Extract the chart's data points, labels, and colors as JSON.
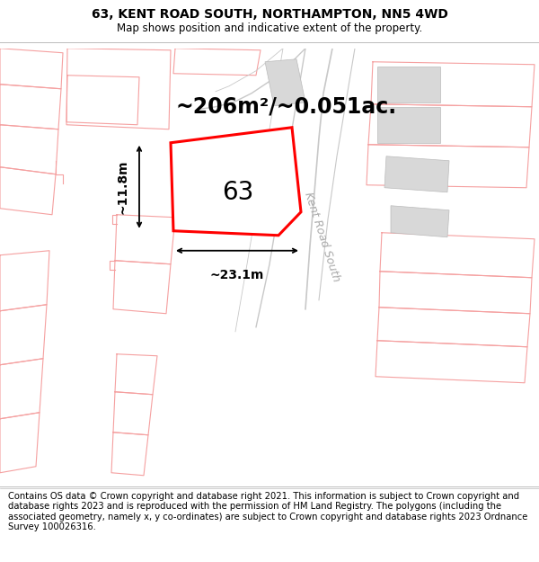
{
  "title": "63, KENT ROAD SOUTH, NORTHAMPTON, NN5 4WD",
  "subtitle": "Map shows position and indicative extent of the property.",
  "footer": "Contains OS data © Crown copyright and database right 2021. This information is subject to Crown copyright and database rights 2023 and is reproduced with the permission of HM Land Registry. The polygons (including the associated geometry, namely x, y co-ordinates) are subject to Crown copyright and database rights 2023 Ordnance Survey 100026316.",
  "area_text": "~206m²/~0.051ac.",
  "number_label": "63",
  "width_label": "~23.1m",
  "height_label": "~11.8m",
  "road_label": "Kent Road South",
  "highlight_color": "#ff0000",
  "nearby_color": "#f5a0a0",
  "road_line_color": "#cccccc",
  "road_fill_color": "#e8e8e8",
  "grey_fill_color": "#d8d8d8",
  "title_fontsize": 10,
  "subtitle_fontsize": 8.5,
  "footer_fontsize": 7.2,
  "area_fontsize": 17,
  "number_fontsize": 20,
  "label_fontsize": 10,
  "road_label_fontsize": 9
}
